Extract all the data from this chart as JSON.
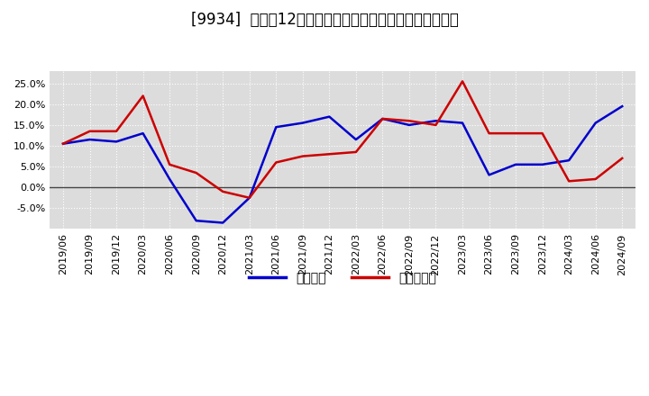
{
  "title": "[9934]  利益の12か月移動合計の対前年同期増減率の推移",
  "x_labels": [
    "2019/06",
    "2019/09",
    "2019/12",
    "2020/03",
    "2020/06",
    "2020/09",
    "2020/12",
    "2021/03",
    "2021/06",
    "2021/09",
    "2021/12",
    "2022/03",
    "2022/06",
    "2022/09",
    "2022/12",
    "2023/03",
    "2023/06",
    "2023/09",
    "2023/12",
    "2024/03",
    "2024/06",
    "2024/09"
  ],
  "blue_data": [
    0.105,
    0.115,
    0.11,
    0.13,
    0.02,
    -0.08,
    -0.085,
    -0.025,
    0.145,
    0.155,
    0.17,
    0.115,
    0.165,
    0.15,
    0.16,
    0.155,
    0.03,
    0.055,
    0.055,
    0.065,
    0.155,
    0.195
  ],
  "red_data": [
    0.105,
    0.135,
    0.135,
    0.22,
    0.055,
    0.035,
    -0.01,
    -0.025,
    0.06,
    0.075,
    0.08,
    0.085,
    0.165,
    0.16,
    0.15,
    0.255,
    0.13,
    0.13,
    0.13,
    0.015,
    0.02,
    0.07
  ],
  "blue_color": "#0000cc",
  "red_color": "#cc0000",
  "ylim": [
    -0.1,
    0.28
  ],
  "yticks": [
    -0.05,
    0.0,
    0.05,
    0.1,
    0.15,
    0.2,
    0.25
  ],
  "legend_blue": "経常利益",
  "legend_red": "当期純利益",
  "bg_color": "#ffffff",
  "plot_bg_color": "#dcdcdc",
  "grid_color": "#ffffff",
  "title_fontsize": 12,
  "tick_fontsize": 8,
  "legend_fontsize": 10
}
